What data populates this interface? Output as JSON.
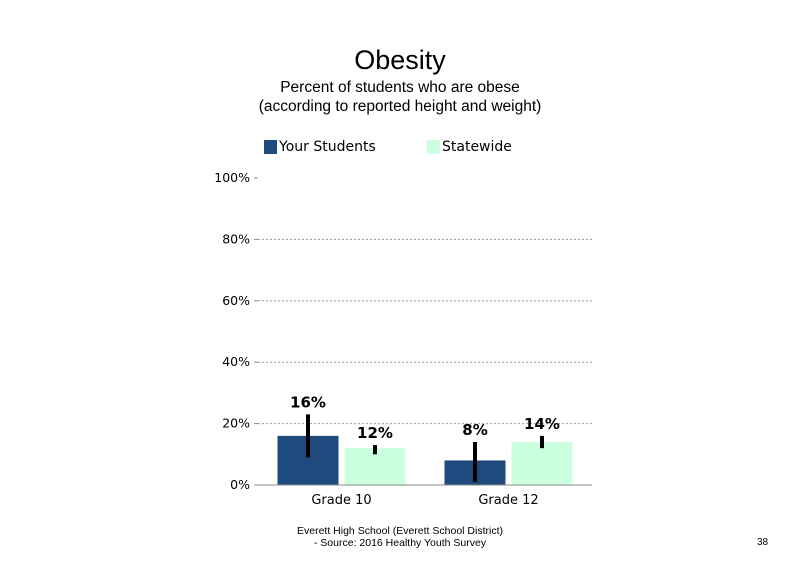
{
  "colors": {
    "your_students": "#1f4a7e",
    "statewide": "#ccffe0",
    "gridline": "#999999",
    "error_bar": "#000000"
  },
  "chart_data": {
    "type": "bar",
    "title": "Obesity",
    "subtitle": "Percent of students who are obese (according to reported height and weight)",
    "categories": [
      "Grade 10",
      "Grade 12"
    ],
    "series": [
      {
        "name": "Your Students",
        "values": [
          16,
          8
        ],
        "labels": [
          "16%",
          "8%"
        ],
        "error_low": [
          9,
          1
        ],
        "error_high": [
          23,
          14
        ]
      },
      {
        "name": "Statewide",
        "values": [
          12,
          14
        ],
        "labels": [
          "12%",
          "14%"
        ],
        "error_low": [
          10,
          12
        ],
        "error_high": [
          13,
          16
        ]
      }
    ],
    "y_ticks": [
      "0%",
      "20%",
      "40%",
      "60%",
      "80%",
      "100%"
    ],
    "ylim": [
      0,
      100
    ],
    "grid": true,
    "legend_position": "top"
  },
  "footer": {
    "line1": "Everett High School (Everett School District)",
    "line2": "- Source: 2016 Healthy Youth Survey"
  },
  "page_number": "38"
}
